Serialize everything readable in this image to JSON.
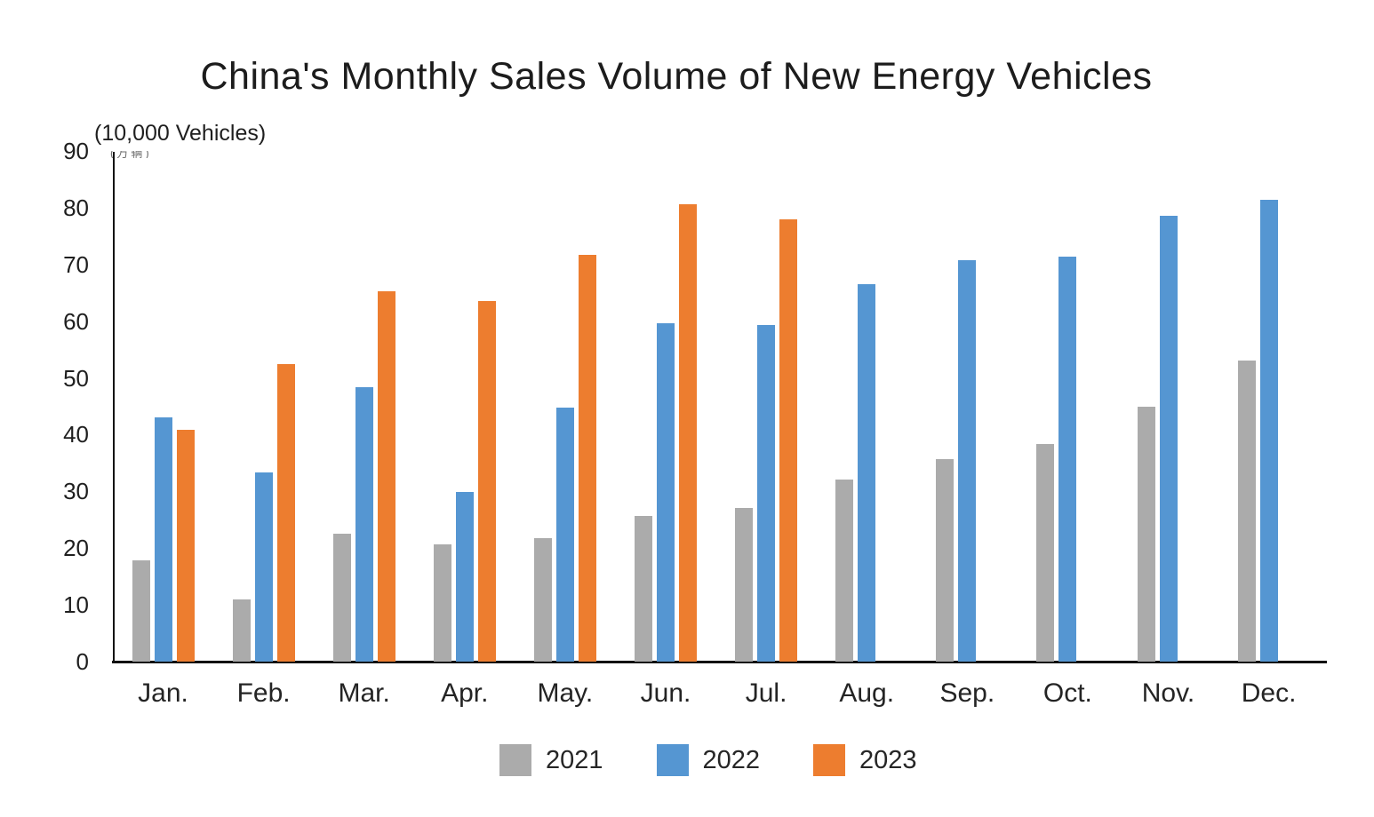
{
  "title": "China's Monthly Sales Volume of New Energy Vehicles",
  "y_axis": {
    "unit_label": "(10,000 Vehicles)",
    "unit_label_artifact": "(万辆)"
  },
  "colors": {
    "series_2021": "#ABABAB",
    "series_2022": "#5596D2",
    "series_2023": "#ED7D2F",
    "axis": "#111111",
    "text": "#1C1C1C"
  },
  "chart_data": {
    "type": "bar",
    "title": "China's Monthly Sales Volume of New Energy Vehicles",
    "xlabel": "",
    "ylabel": "(10,000 Vehicles)",
    "ylim": [
      0,
      90
    ],
    "y_ticks": [
      0,
      10,
      20,
      30,
      40,
      50,
      60,
      70,
      80,
      90
    ],
    "grid": false,
    "legend_position": "bottom",
    "categories": [
      "Jan.",
      "Feb.",
      "Mar.",
      "Apr.",
      "May.",
      "Jun.",
      "Jul.",
      "Aug.",
      "Sep.",
      "Oct.",
      "Nov.",
      "Dec."
    ],
    "series": [
      {
        "name": "2021",
        "color": "#ABABAB",
        "values": [
          17.9,
          11.0,
          22.6,
          20.6,
          21.7,
          25.6,
          27.1,
          32.1,
          35.7,
          38.3,
          45.0,
          53.1
        ]
      },
      {
        "name": "2022",
        "color": "#5596D2",
        "values": [
          43.1,
          33.4,
          48.4,
          29.9,
          44.7,
          59.6,
          59.3,
          66.6,
          70.8,
          71.4,
          78.6,
          81.4
        ]
      },
      {
        "name": "2023",
        "color": "#ED7D2F",
        "values": [
          40.8,
          52.5,
          65.3,
          63.6,
          71.7,
          80.6,
          78.0,
          null,
          null,
          null,
          null,
          null
        ]
      }
    ]
  },
  "legend": {
    "items": [
      "2021",
      "2022",
      "2023"
    ]
  }
}
